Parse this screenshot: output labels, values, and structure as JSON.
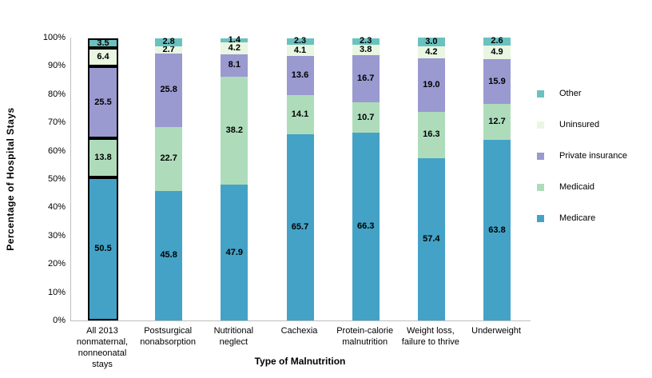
{
  "chart_data": {
    "type": "bar",
    "stacked": true,
    "xlabel": "Type of Malnutrition",
    "ylabel": "Percentage of Hospital Stays",
    "ylim": [
      0,
      100
    ],
    "ytick_step": 10,
    "ytick_suffix": "%",
    "grid": false,
    "legend_position": "right",
    "axis_color": "#BFBFBF",
    "value_label_color": "#000000",
    "highlighted_category_index": 0,
    "highlight_outline_color": "#000000",
    "categories": [
      "All 2013\nnonmaternal,\nnonneonatal\nstays",
      "Postsurgical\nnonabsorption",
      "Nutritional\nneglect",
      "Cachexia",
      "Protein-calorie\nmalnutrition",
      "Weight loss,\nfailure to thrive",
      "Underweight"
    ],
    "series": [
      {
        "name": "Medicare",
        "color": "#44A2C6",
        "values": [
          50.5,
          45.8,
          47.9,
          65.7,
          66.3,
          57.4,
          63.8
        ]
      },
      {
        "name": "Medicaid",
        "color": "#AEDCBB",
        "values": [
          13.8,
          22.7,
          38.2,
          14.1,
          10.7,
          16.3,
          12.7
        ]
      },
      {
        "name": "Private insurance",
        "color": "#9A99D0",
        "values": [
          25.5,
          25.8,
          8.1,
          13.6,
          16.7,
          19.0,
          15.9
        ]
      },
      {
        "name": "Uninsured",
        "color": "#E9F6E2",
        "values": [
          6.4,
          2.7,
          4.2,
          4.1,
          3.8,
          4.2,
          4.9
        ]
      },
      {
        "name": "Other",
        "color": "#6AC2C0",
        "values": [
          3.5,
          2.8,
          1.4,
          2.3,
          2.3,
          3.0,
          2.6
        ]
      }
    ],
    "legend_order_top_to_bottom": [
      "Other",
      "Uninsured",
      "Private insurance",
      "Medicaid",
      "Medicare"
    ]
  }
}
